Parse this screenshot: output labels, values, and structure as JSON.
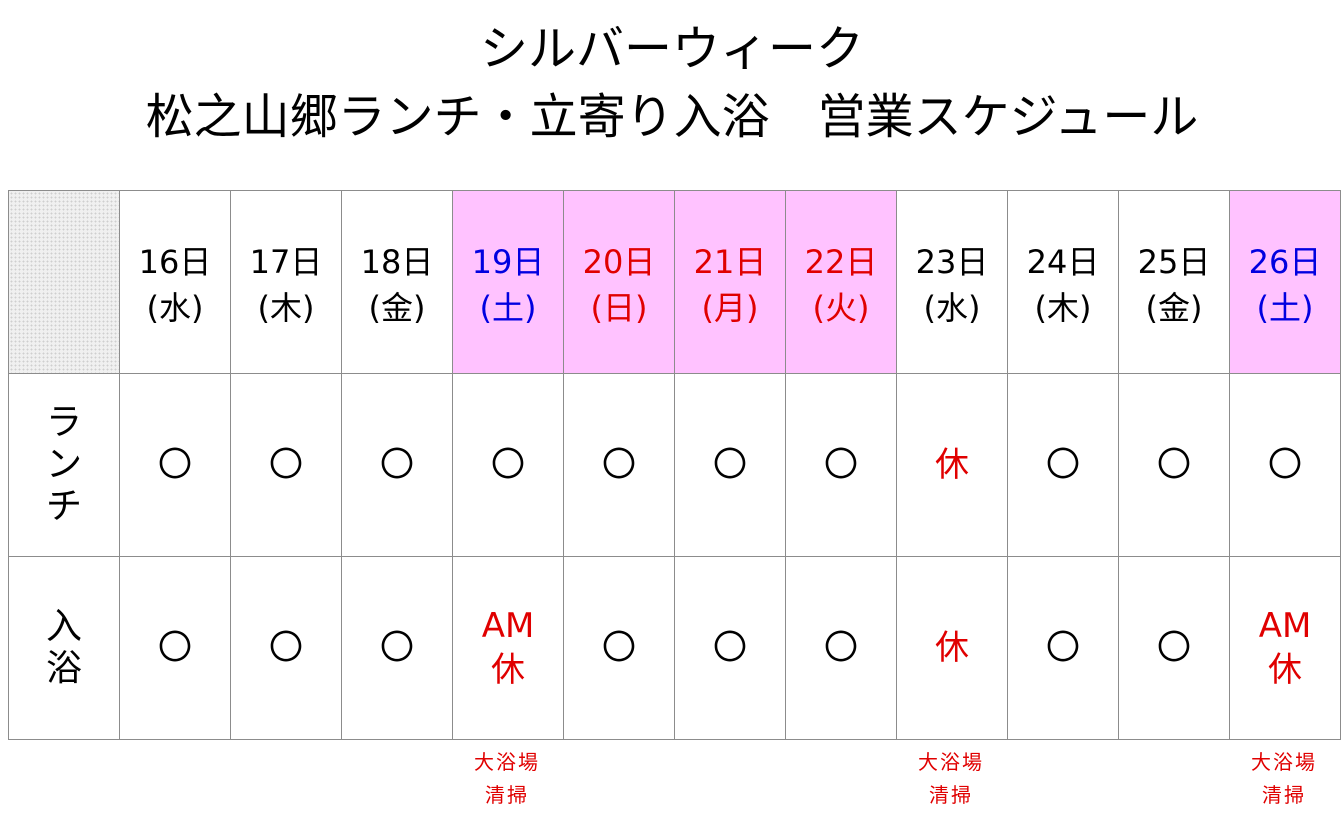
{
  "title": {
    "line1": "シルバーウィーク",
    "line2": "松之山郷ランチ・立寄り入浴　営業スケジュール"
  },
  "colors": {
    "weekday": "#000000",
    "saturday": "#0000e0",
    "holiday": "#e00000",
    "holiday_bg": "#ffc2ff",
    "closed": "#e00000"
  },
  "days": [
    {
      "date": "16日",
      "dow": "(水)",
      "type": "weekday",
      "lunch": "〇",
      "bath": [
        "〇"
      ]
    },
    {
      "date": "17日",
      "dow": "(木)",
      "type": "weekday",
      "lunch": "〇",
      "bath": [
        "〇"
      ]
    },
    {
      "date": "18日",
      "dow": "(金)",
      "type": "weekday",
      "lunch": "〇",
      "bath": [
        "〇"
      ]
    },
    {
      "date": "19日",
      "dow": "(土)",
      "type": "saturday",
      "lunch": "〇",
      "bath": [
        "AM",
        "休"
      ],
      "note": [
        "大浴場",
        "清掃"
      ]
    },
    {
      "date": "20日",
      "dow": "(日)",
      "type": "holiday",
      "lunch": "〇",
      "bath": [
        "〇"
      ]
    },
    {
      "date": "21日",
      "dow": "(月)",
      "type": "holiday",
      "lunch": "〇",
      "bath": [
        "〇"
      ]
    },
    {
      "date": "22日",
      "dow": "(火)",
      "type": "holiday",
      "lunch": "〇",
      "bath": [
        "〇"
      ]
    },
    {
      "date": "23日",
      "dow": "(水)",
      "type": "weekday",
      "lunch": "休",
      "bath": [
        "休"
      ],
      "note": [
        "大浴場",
        "清掃"
      ]
    },
    {
      "date": "24日",
      "dow": "(木)",
      "type": "weekday",
      "lunch": "〇",
      "bath": [
        "〇"
      ]
    },
    {
      "date": "25日",
      "dow": "(金)",
      "type": "weekday",
      "lunch": "〇",
      "bath": [
        "〇"
      ]
    },
    {
      "date": "26日",
      "dow": "(土)",
      "type": "saturday",
      "lunch": "〇",
      "bath": [
        "AM",
        "休"
      ],
      "note": [
        "大浴場",
        "清掃"
      ]
    }
  ],
  "rows": {
    "lunch": [
      "ラ",
      "ン",
      "チ"
    ],
    "bath": [
      "入",
      "浴"
    ]
  }
}
